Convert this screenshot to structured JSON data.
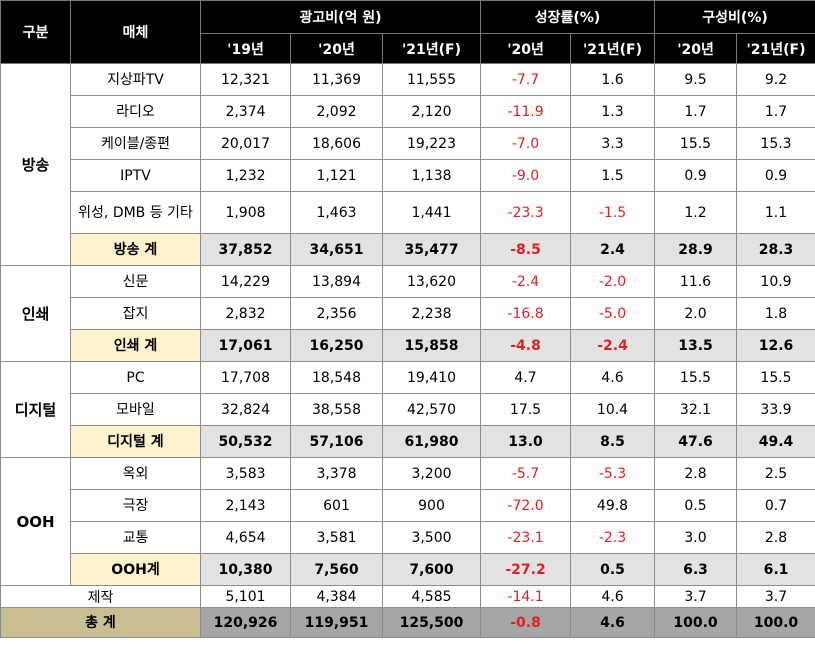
{
  "headers": {
    "category": "구분",
    "media": "매체",
    "ad_cost": "광고비(억 원)",
    "growth": "성장률(%)",
    "composition": "구성비(%)",
    "ad_cost_years": [
      "'19년",
      "'20년",
      "'21년(F)"
    ],
    "growth_years": [
      "'20년",
      "'21년(F)"
    ],
    "composition_years": [
      "'20년",
      "'21년(F)"
    ]
  },
  "groups": [
    {
      "category": "방송",
      "rows": [
        {
          "media": "지상파TV",
          "values": [
            "12,321",
            "11,369",
            "11,555",
            "-7.7",
            "1.6",
            "9.5",
            "9.2"
          ]
        },
        {
          "media": "라디오",
          "values": [
            "2,374",
            "2,092",
            "2,120",
            "-11.9",
            "1.3",
            "1.7",
            "1.7"
          ]
        },
        {
          "media": "케이블/종편",
          "values": [
            "20,017",
            "18,606",
            "19,223",
            "-7.0",
            "3.3",
            "15.5",
            "15.3"
          ]
        },
        {
          "media": "IPTV",
          "values": [
            "1,232",
            "1,121",
            "1,138",
            "-9.0",
            "1.5",
            "0.9",
            "0.9"
          ]
        },
        {
          "media": "위성, DMB 등 기타",
          "values": [
            "1,908",
            "1,463",
            "1,441",
            "-23.3",
            "-1.5",
            "1.2",
            "1.1"
          ]
        }
      ],
      "subtotal": {
        "media": "방송 계",
        "values": [
          "37,852",
          "34,651",
          "35,477",
          "-8.5",
          "2.4",
          "28.9",
          "28.3"
        ]
      }
    },
    {
      "category": "인쇄",
      "rows": [
        {
          "media": "신문",
          "values": [
            "14,229",
            "13,894",
            "13,620",
            "-2.4",
            "-2.0",
            "11.6",
            "10.9"
          ]
        },
        {
          "media": "잡지",
          "values": [
            "2,832",
            "2,356",
            "2,238",
            "-16.8",
            "-5.0",
            "2.0",
            "1.8"
          ]
        }
      ],
      "subtotal": {
        "media": "인쇄 계",
        "values": [
          "17,061",
          "16,250",
          "15,858",
          "-4.8",
          "-2.4",
          "13.5",
          "12.6"
        ]
      }
    },
    {
      "category": "디지털",
      "rows": [
        {
          "media": "PC",
          "values": [
            "17,708",
            "18,548",
            "19,410",
            "4.7",
            "4.6",
            "15.5",
            "15.5"
          ]
        },
        {
          "media": "모바일",
          "values": [
            "32,824",
            "38,558",
            "42,570",
            "17.5",
            "10.4",
            "32.1",
            "33.9"
          ]
        }
      ],
      "subtotal": {
        "media": "디지털 계",
        "values": [
          "50,532",
          "57,106",
          "61,980",
          "13.0",
          "8.5",
          "47.6",
          "49.4"
        ]
      }
    },
    {
      "category": "OOH",
      "rows": [
        {
          "media": "옥외",
          "values": [
            "3,583",
            "3,378",
            "3,200",
            "-5.7",
            "-5.3",
            "2.8",
            "2.5"
          ]
        },
        {
          "media": "극장",
          "values": [
            "2,143",
            "601",
            "900",
            "-72.0",
            "49.8",
            "0.5",
            "0.7"
          ]
        },
        {
          "media": "교통",
          "values": [
            "4,654",
            "3,581",
            "3,500",
            "-23.1",
            "-2.3",
            "3.0",
            "2.8"
          ]
        }
      ],
      "subtotal": {
        "media": "OOH계",
        "values": [
          "10,380",
          "7,560",
          "7,600",
          "-27.2",
          "0.5",
          "6.3",
          "6.1"
        ]
      }
    }
  ],
  "production": {
    "media": "제작",
    "values": [
      "5,101",
      "4,384",
      "4,585",
      "-14.1",
      "4.6",
      "3.7",
      "3.7"
    ]
  },
  "total": {
    "media": "총 계",
    "values": [
      "120,926",
      "119,951",
      "125,500",
      "-0.8",
      "4.6",
      "100.0",
      "100.0"
    ]
  },
  "colors": {
    "header_bg": "#000000",
    "subtotal_bg": "#e2e2e2",
    "subtotal_media_bg": "#fff2cc",
    "total_bg": "#a6a6a6",
    "total_label_bg": "#c9bf93",
    "negative": "#e02020"
  }
}
